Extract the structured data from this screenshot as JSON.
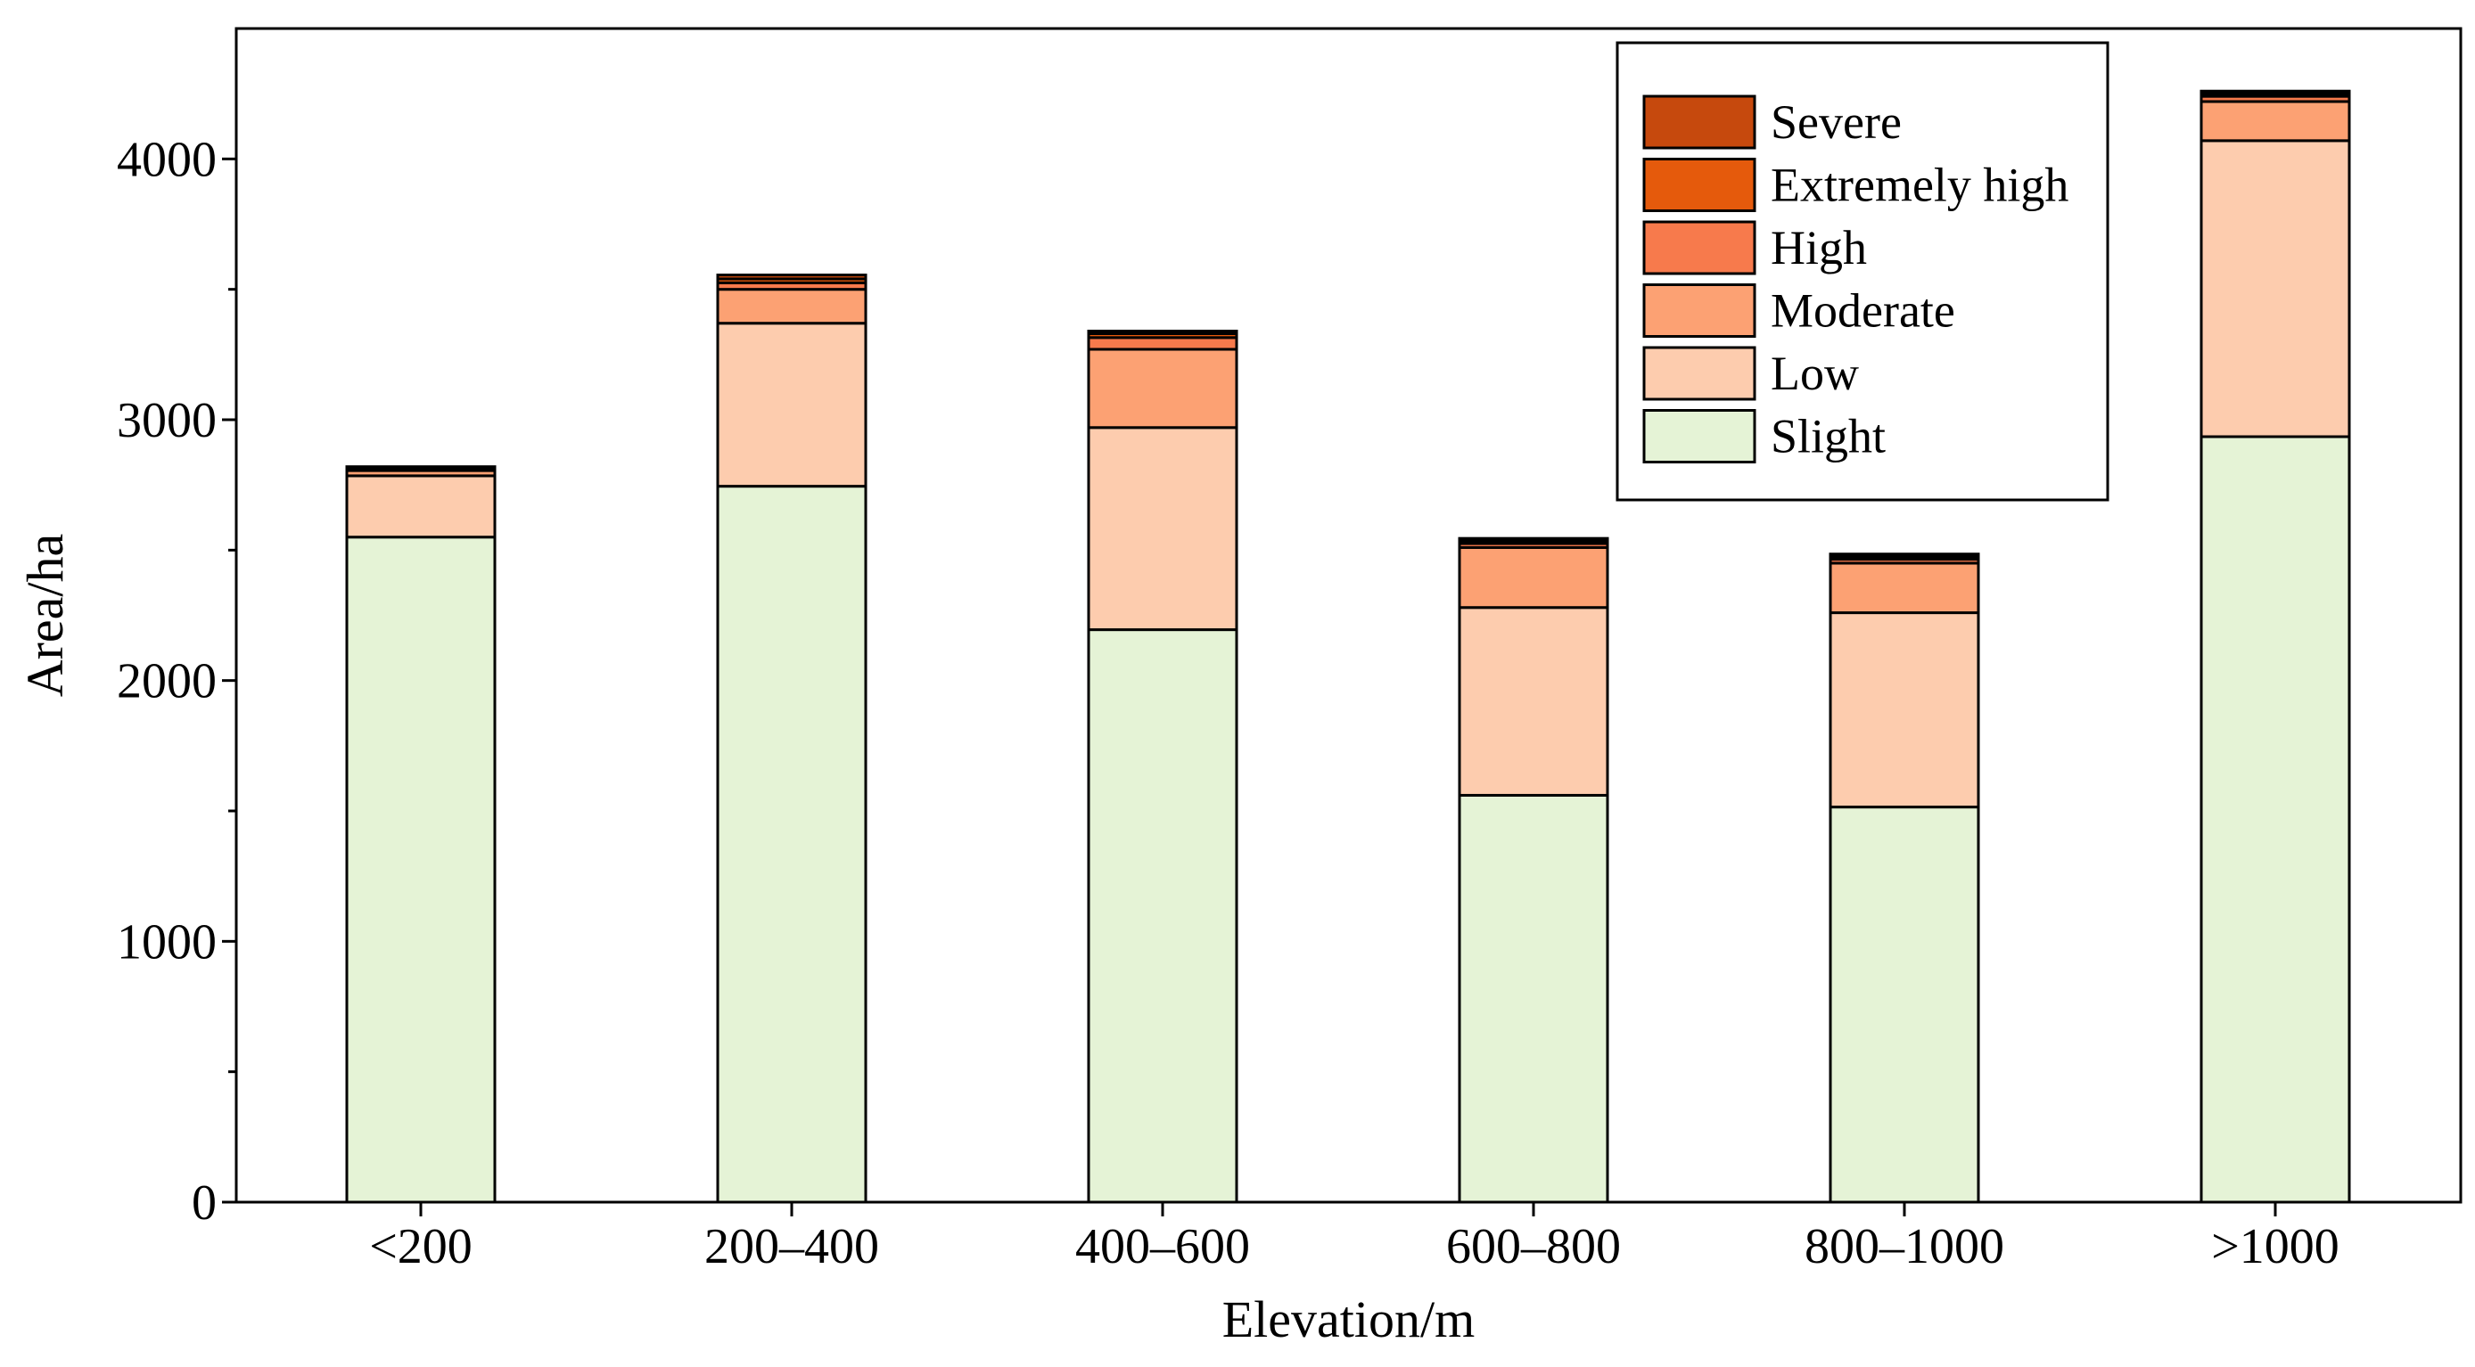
{
  "chart_data": {
    "type": "bar",
    "stacked": true,
    "title": "",
    "xlabel": "Elevation/m",
    "ylabel": "Area/ha",
    "ylim": [
      0,
      4500
    ],
    "yticks": [
      0,
      1000,
      2000,
      3000,
      4000
    ],
    "categories": [
      "<200",
      "200–400",
      "400–600",
      "600–800",
      "800–1000",
      ">1000"
    ],
    "legend_position": "top-right",
    "series": [
      {
        "name": "Slight",
        "color": "#E5F3D6",
        "values": [
          2550,
          2745,
          2195,
          1560,
          1515,
          2935
        ]
      },
      {
        "name": "Low",
        "color": "#FDCCAE",
        "values": [
          235,
          625,
          775,
          720,
          745,
          1135
        ]
      },
      {
        "name": "Moderate",
        "color": "#FCA173",
        "values": [
          20,
          130,
          300,
          230,
          190,
          150
        ]
      },
      {
        "name": "High",
        "color": "#F77A4C",
        "values": [
          5,
          25,
          45,
          15,
          15,
          20
        ]
      },
      {
        "name": "Extremely high",
        "color": "#E55A0C",
        "values": [
          5,
          15,
          15,
          10,
          10,
          10
        ]
      },
      {
        "name": "Severe",
        "color": "#C6490D",
        "values": [
          5,
          15,
          10,
          10,
          10,
          10
        ]
      }
    ]
  }
}
